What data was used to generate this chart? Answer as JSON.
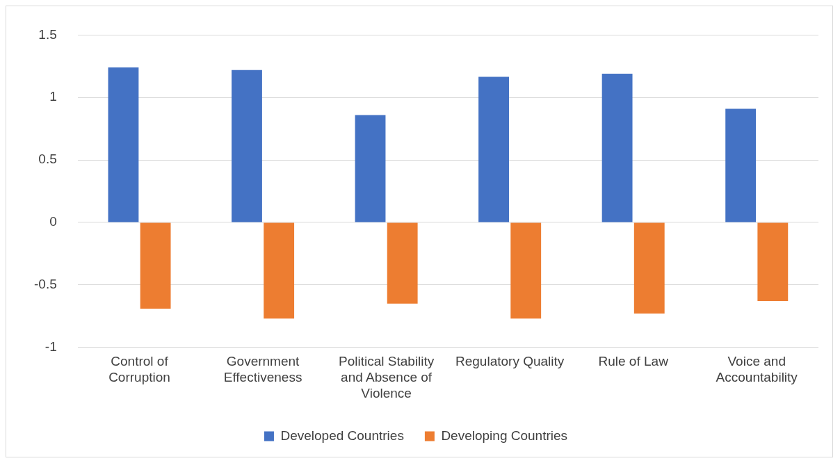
{
  "chart_data": {
    "type": "bar",
    "categories": [
      "Control of Corruption",
      "Government Effectiveness",
      "Political Stability and Absence of Violence",
      "Regulatory Quality",
      "Rule of Law",
      "Voice and Accountability"
    ],
    "series": [
      {
        "name": "Developed Countries",
        "color": "#4472c4",
        "values": [
          1.24,
          1.22,
          0.86,
          1.165,
          1.19,
          0.91
        ]
      },
      {
        "name": "Developing Countries",
        "color": "#ed7d31",
        "values": [
          -0.69,
          -0.77,
          -0.65,
          -0.77,
          -0.73,
          -0.63
        ]
      }
    ],
    "ylim": [
      -1,
      1.5
    ],
    "yticks": [
      -1,
      -0.5,
      0,
      0.5,
      1,
      1.5
    ],
    "grid": "y",
    "legend": "bottom"
  }
}
